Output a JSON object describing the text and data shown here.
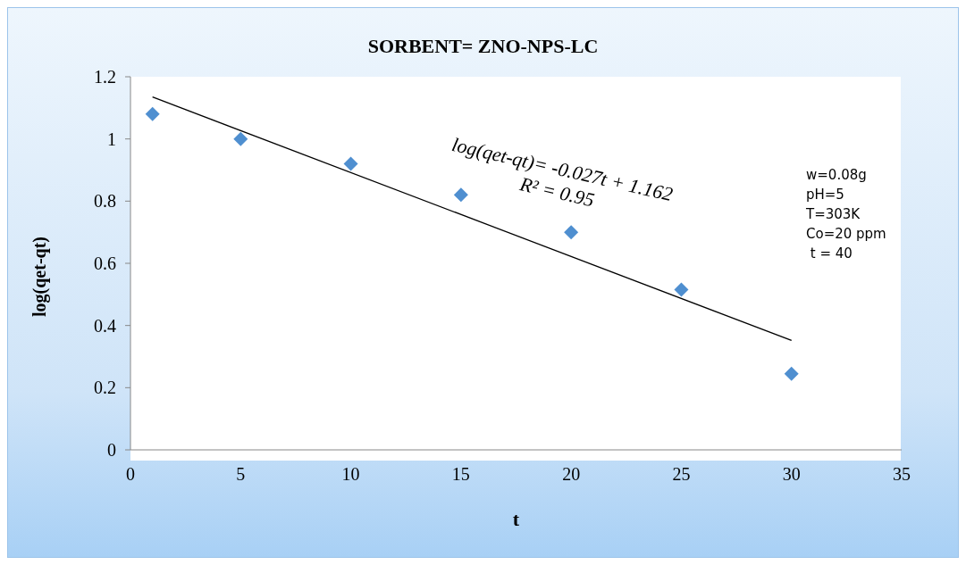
{
  "chart_data": {
    "type": "scatter",
    "title": "SORBENT= ZNO-NPS-LC",
    "xlabel": "t",
    "ylabel": "log(qet-qt)",
    "series": [
      {
        "color": "#4f8fd0",
        "marker": "diamond",
        "x": [
          1,
          5,
          10,
          15,
          20,
          25,
          30
        ],
        "values": [
          1.08,
          1.0,
          0.92,
          0.82,
          0.7,
          0.515,
          0.245
        ]
      },
      {
        "type": "line",
        "color": "#000000",
        "marker": "none",
        "line_style": "solid",
        "x": [
          1,
          30
        ],
        "values": [
          1.135,
          0.352
        ]
      }
    ],
    "xlim": [
      0,
      35
    ],
    "xticks": [
      0,
      5,
      10,
      15,
      20,
      25,
      30,
      35
    ],
    "ylim": [
      0,
      1.2
    ],
    "yticks": [
      0,
      0.2,
      0.4,
      0.6,
      0.8,
      1,
      1.2
    ],
    "grid": false,
    "annotations": [
      "log(qet-qt)= -0.027t + 1.162",
      "R² = 0.95",
      "w=0.08g",
      "pH=5",
      "T=303K",
      "Co=20 ppm",
      " t = 40"
    ]
  }
}
